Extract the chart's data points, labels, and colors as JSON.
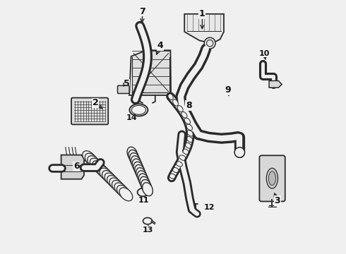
{
  "bg_color": "#f0f0f0",
  "line_color": "#2a2a2a",
  "label_color": "#111111",
  "figsize": [
    4.9,
    3.6
  ],
  "dpi": 100,
  "labels": {
    "1": {
      "lpos": [
        0.615,
        0.945
      ],
      "apos": [
        0.615,
        0.875
      ]
    },
    "2": {
      "lpos": [
        0.195,
        0.595
      ],
      "apos": [
        0.23,
        0.565
      ]
    },
    "3": {
      "lpos": [
        0.91,
        0.21
      ],
      "apos": [
        0.895,
        0.25
      ]
    },
    "4": {
      "lpos": [
        0.45,
        0.82
      ],
      "apos": [
        0.43,
        0.775
      ]
    },
    "5": {
      "lpos": [
        0.318,
        0.67
      ],
      "apos": [
        0.33,
        0.645
      ]
    },
    "6": {
      "lpos": [
        0.12,
        0.345
      ],
      "apos": [
        0.148,
        0.328
      ]
    },
    "7": {
      "lpos": [
        0.38,
        0.955
      ],
      "apos": [
        0.378,
        0.9
      ]
    },
    "8": {
      "lpos": [
        0.562,
        0.585
      ],
      "apos": [
        0.545,
        0.558
      ]
    },
    "9": {
      "lpos": [
        0.715,
        0.645
      ],
      "apos": [
        0.722,
        0.612
      ]
    },
    "10": {
      "lpos": [
        0.86,
        0.79
      ],
      "apos": [
        0.865,
        0.755
      ]
    },
    "11": {
      "lpos": [
        0.385,
        0.21
      ],
      "apos": [
        0.385,
        0.24
      ]
    },
    "12": {
      "lpos": [
        0.642,
        0.183
      ],
      "apos": [
        0.61,
        0.183
      ]
    },
    "13": {
      "lpos": [
        0.402,
        0.095
      ],
      "apos": [
        0.402,
        0.125
      ]
    },
    "14": {
      "lpos": [
        0.338,
        0.535
      ],
      "apos": [
        0.345,
        0.558
      ]
    }
  }
}
